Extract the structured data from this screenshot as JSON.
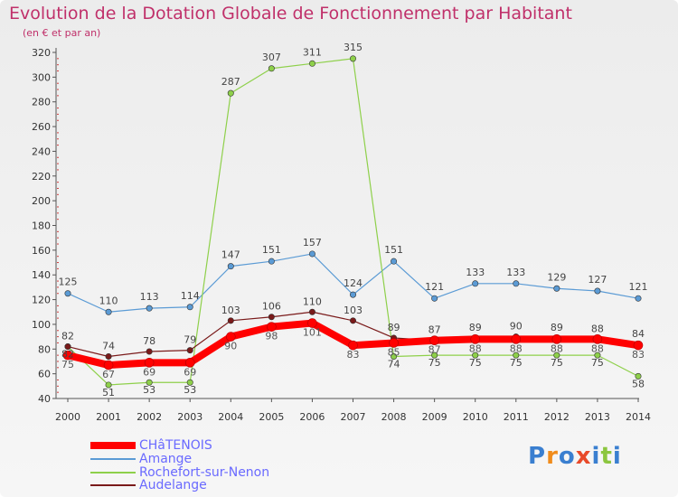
{
  "title": "Evolution de la Dotation Globale de Fonctionnement par Habitant",
  "subtitle": "(en € et par an)",
  "logo": {
    "text": "Proxiti",
    "colors": [
      "#3a7fd0",
      "#f08c1c",
      "#3a7fd0",
      "#e84a2a",
      "#3a7fd0",
      "#8cc63f",
      "#3a7fd0"
    ]
  },
  "chart_data": {
    "type": "line",
    "title": "Evolution de la Dotation Globale de Fonctionnement par Habitant",
    "subtitle": "(en € et par an)",
    "xlabel": "",
    "ylabel": "",
    "ylim": [
      40,
      320
    ],
    "yticks": [
      40,
      60,
      80,
      100,
      120,
      140,
      160,
      180,
      200,
      220,
      240,
      260,
      280,
      300,
      320
    ],
    "categories": [
      "2000",
      "2001",
      "2002",
      "2003",
      "2004",
      "2005",
      "2006",
      "2007",
      "2008",
      "2009",
      "2010",
      "2011",
      "2012",
      "2013",
      "2014"
    ],
    "grid": false,
    "legend_position": "bottom-left",
    "series": [
      {
        "name": "Amange",
        "color": "#5b9bd5",
        "values": [
          125,
          110,
          113,
          114,
          147,
          151,
          157,
          124,
          151,
          121,
          133,
          133,
          129,
          127,
          121
        ],
        "labels": [
          "125",
          "110",
          "113",
          "114",
          "147",
          "151",
          "157",
          "124",
          "151",
          "121",
          "133",
          "133",
          "129",
          "127",
          "121"
        ]
      },
      {
        "name": "Rochefort-sur-Nenon",
        "color": "#8ed04a",
        "values": [
          82,
          51,
          53,
          53,
          287,
          307,
          311,
          315,
          74,
          75,
          75,
          75,
          75,
          75,
          58
        ],
        "labels": [
          "82",
          "51",
          "53",
          "53",
          "287",
          "307",
          "311",
          "315",
          "74",
          "75",
          "75",
          "75",
          "75",
          "75",
          "58"
        ]
      },
      {
        "name": "Audelange",
        "color": "#7a1a1a",
        "values": [
          82,
          74,
          78,
          79,
          103,
          106,
          110,
          103,
          89,
          87,
          89,
          90,
          89,
          88,
          84
        ],
        "labels": [
          "82",
          "74",
          "78",
          "79",
          "103",
          "106",
          "110",
          "103",
          "89",
          "87",
          "89",
          "90",
          "89",
          "88",
          "84"
        ]
      },
      {
        "name": "CHâTENOIS",
        "color": "#ff0000",
        "values": [
          75,
          67,
          69,
          69,
          90,
          98,
          101,
          83,
          85,
          87,
          88,
          88,
          88,
          88,
          83
        ],
        "labels": [
          "75",
          "67",
          "69",
          "69",
          "90",
          "98",
          "101",
          "83",
          "85",
          "87",
          "88",
          "88",
          "88",
          "88",
          "83"
        ]
      }
    ],
    "legend_order": [
      "CHâTENOIS",
      "Amange",
      "Rochefort-sur-Nenon",
      "Audelange"
    ]
  }
}
